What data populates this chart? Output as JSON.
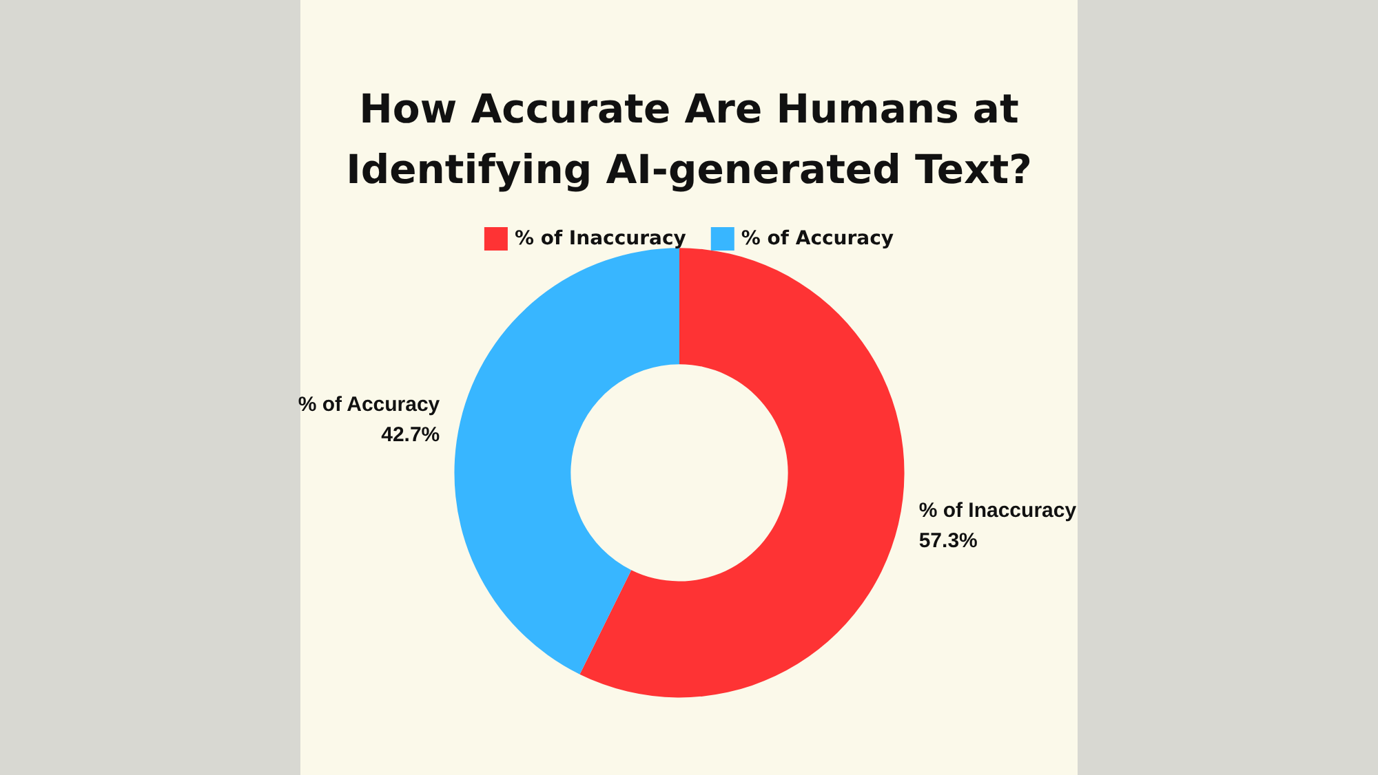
{
  "chart_data": {
    "type": "donut",
    "title": "How Accurate Are Humans at\nIdentifying AI-generated Text?",
    "categories": [
      "% of Inaccuracy",
      "% of Accuracy"
    ],
    "values": [
      57.3,
      42.7
    ],
    "colors": [
      "#fe3334",
      "#38b6ff"
    ],
    "value_labels": [
      "57.3%",
      "42.7%"
    ],
    "legend": "top"
  }
}
